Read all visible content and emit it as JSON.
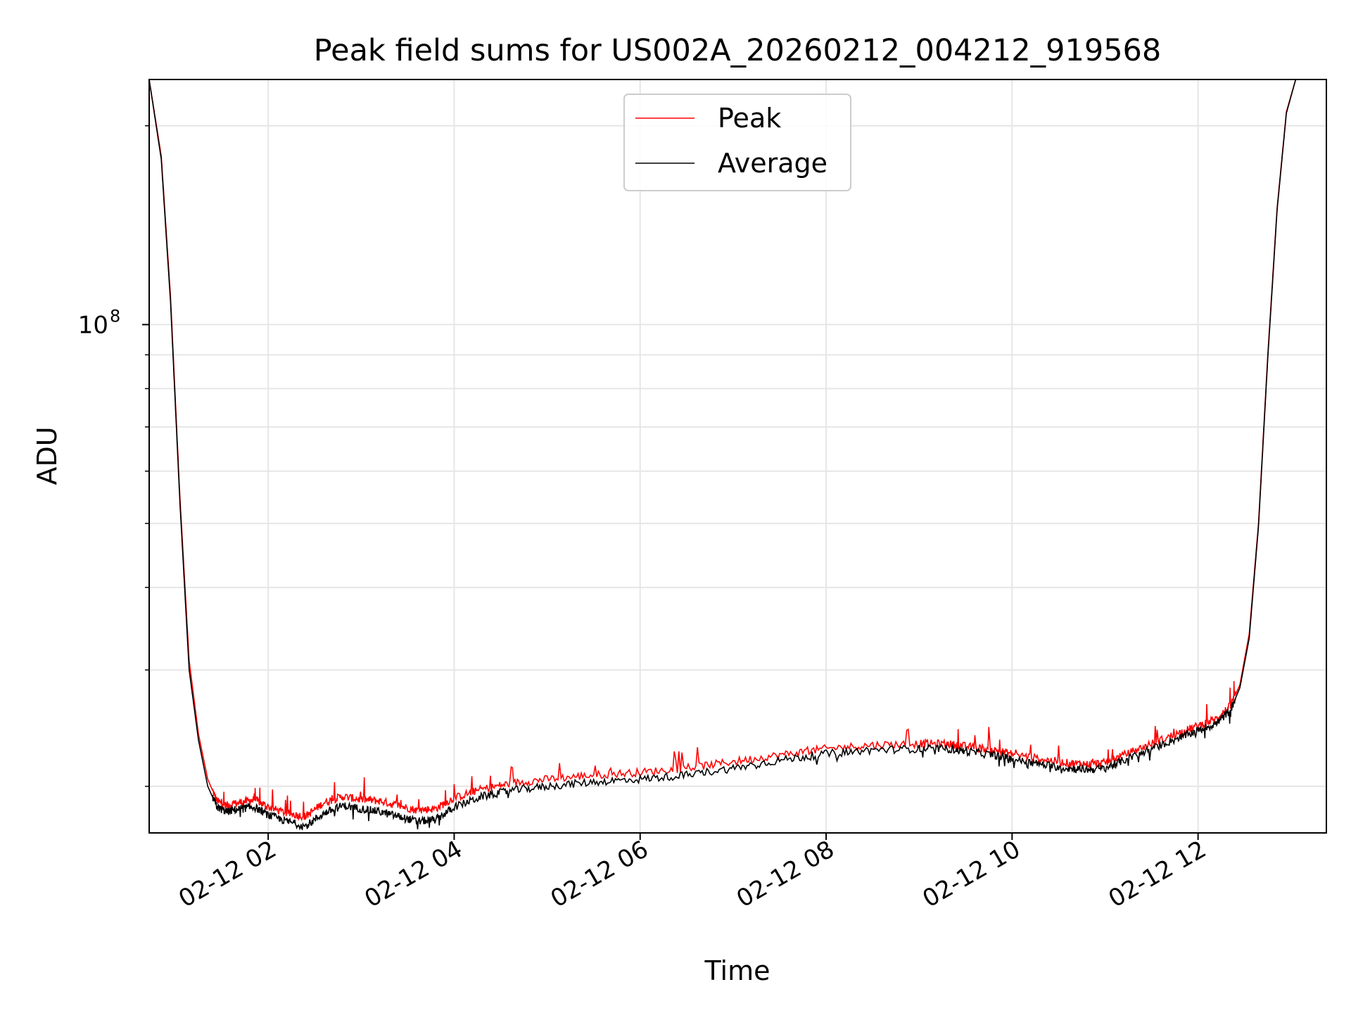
{
  "chart_data": {
    "type": "line",
    "title": "Peak field sums for US002A_20260212_004212_919568",
    "xlabel": "Time",
    "ylabel": "ADU",
    "yscale": "log",
    "ylim": [
      17000000,
      235000000
    ],
    "x_unit": "hours since 2026-02-12 00:00",
    "xlim": [
      0.72,
      13.38
    ],
    "x_ticks": [
      {
        "value": 2,
        "label": "02-12 02"
      },
      {
        "value": 4,
        "label": "02-12 04"
      },
      {
        "value": 6,
        "label": "02-12 06"
      },
      {
        "value": 8,
        "label": "02-12 08"
      },
      {
        "value": 10,
        "label": "02-12 10"
      },
      {
        "value": 12,
        "label": "02-12 12"
      }
    ],
    "y_ticks": [
      {
        "value": 100000000,
        "base": "10",
        "exponent": "8"
      }
    ],
    "y_minor_ticks": [
      20000000,
      30000000,
      40000000,
      50000000,
      60000000,
      70000000,
      80000000,
      90000000,
      200000000
    ],
    "grid": true,
    "legend_position": "top-center",
    "series": [
      {
        "name": "Peak",
        "color": "#ff0000",
        "x": [
          0.72,
          0.85,
          0.95,
          1.05,
          1.15,
          1.25,
          1.35,
          1.45,
          1.55,
          1.7,
          1.85,
          2.0,
          2.2,
          2.4,
          2.6,
          2.8,
          3.0,
          3.2,
          3.4,
          3.6,
          3.8,
          4.0,
          4.3,
          4.6,
          5.0,
          5.5,
          6.0,
          6.5,
          7.0,
          7.5,
          8.0,
          8.5,
          9.0,
          9.3,
          9.5,
          9.8,
          10.0,
          10.3,
          10.6,
          10.8,
          11.0,
          11.2,
          11.5,
          11.8,
          12.0,
          12.2,
          12.35,
          12.45,
          12.55,
          12.65,
          12.75,
          12.85,
          12.95,
          13.05,
          13.15,
          13.38
        ],
        "y": [
          235000000,
          180000000,
          110000000,
          55000000,
          31000000,
          24000000,
          20500000,
          19000000,
          18700000,
          18900000,
          19100000,
          18600000,
          18200000,
          18000000,
          18900000,
          19300000,
          19100000,
          19000000,
          18700000,
          18400000,
          18500000,
          19200000,
          19800000,
          20200000,
          20500000,
          20800000,
          21000000,
          21300000,
          21800000,
          22300000,
          22800000,
          23100000,
          23200000,
          23200000,
          23000000,
          22700000,
          22400000,
          22000000,
          21700000,
          21600000,
          21700000,
          22300000,
          23200000,
          24100000,
          24700000,
          25300000,
          26500000,
          28500000,
          34000000,
          50000000,
          90000000,
          150000000,
          210000000,
          235000000,
          235000000,
          235000000
        ]
      },
      {
        "name": "Average",
        "color": "#000000",
        "x": [
          0.72,
          0.85,
          0.95,
          1.05,
          1.15,
          1.25,
          1.35,
          1.45,
          1.55,
          1.7,
          1.85,
          2.0,
          2.2,
          2.4,
          2.6,
          2.8,
          3.0,
          3.2,
          3.4,
          3.6,
          3.8,
          4.0,
          4.3,
          4.6,
          5.0,
          5.5,
          6.0,
          6.5,
          7.0,
          7.5,
          8.0,
          8.5,
          9.0,
          9.3,
          9.5,
          9.8,
          10.0,
          10.3,
          10.6,
          10.8,
          11.0,
          11.2,
          11.5,
          11.8,
          12.0,
          12.2,
          12.35,
          12.45,
          12.55,
          12.65,
          12.75,
          12.85,
          12.95,
          13.05,
          13.15,
          13.38
        ],
        "y": [
          235000000,
          178000000,
          108000000,
          54000000,
          30000000,
          23500000,
          20000000,
          18600000,
          18300000,
          18500000,
          18600000,
          18100000,
          17700000,
          17400000,
          18200000,
          18700000,
          18500000,
          18300000,
          18000000,
          17700000,
          17800000,
          18600000,
          19300000,
          19700000,
          20000000,
          20300000,
          20500000,
          20800000,
          21300000,
          21900000,
          22400000,
          22700000,
          22800000,
          22800000,
          22600000,
          22300000,
          22000000,
          21600000,
          21300000,
          21200000,
          21300000,
          21900000,
          22800000,
          23700000,
          24300000,
          24900000,
          26100000,
          28200000,
          33500000,
          49500000,
          89000000,
          149000000,
          209000000,
          235000000,
          235000000,
          235000000
        ]
      }
    ]
  }
}
